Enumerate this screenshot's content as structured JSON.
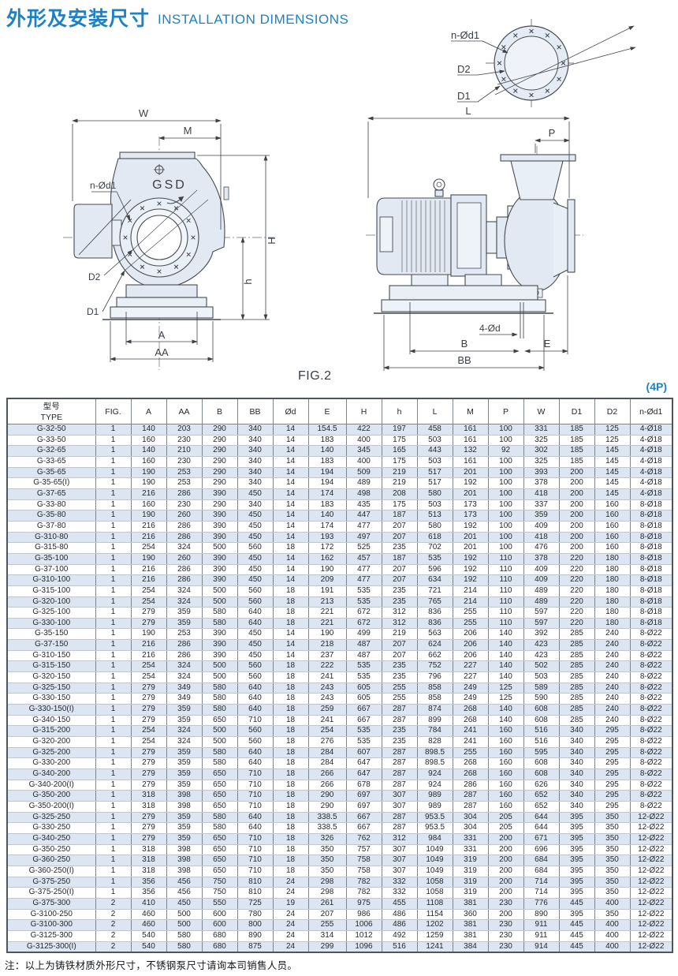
{
  "page": {
    "title_zh": "外形及安装尺寸",
    "title_en": "INSTALLATION DIMENSIONS",
    "fig_caption": "FIG.2",
    "pole_note": "(4P)",
    "footnote": "注：以上为铸铁材质外形尺寸，不锈钢泵尺寸请询本司销售人员。",
    "accent_color": "#1d81c4"
  },
  "drawings": {
    "brand": "GSD",
    "flange_detail": {
      "bolt_label": "n-Ød1",
      "d2_label": "D2",
      "d1_label": "D1"
    },
    "front_view": {
      "w": "W",
      "m": "M",
      "H": "H",
      "h": "h",
      "a": "A",
      "aa": "AA",
      "bolt_label": "n-Ød1",
      "d2": "D2",
      "d1": "D1"
    },
    "side_view": {
      "l": "L",
      "p": "P",
      "bolt_note": "4-Ød",
      "b": "B",
      "e": "E",
      "bb": "BB"
    }
  },
  "table": {
    "headers": [
      "型号\nTYPE",
      "FIG.",
      "A",
      "AA",
      "B",
      "BB",
      "Ød",
      "E",
      "H",
      "h",
      "L",
      "M",
      "P",
      "W",
      "D1",
      "D2",
      "n-Ød1"
    ],
    "rows": [
      [
        "G-32-50",
        "1",
        "140",
        "203",
        "290",
        "340",
        "14",
        "154.5",
        "422",
        "197",
        "458",
        "161",
        "100",
        "331",
        "185",
        "125",
        "4-Ø18"
      ],
      [
        "G-33-50",
        "1",
        "160",
        "230",
        "290",
        "340",
        "14",
        "183",
        "400",
        "175",
        "503",
        "161",
        "100",
        "325",
        "185",
        "125",
        "4-Ø18"
      ],
      [
        "G-32-65",
        "1",
        "140",
        "210",
        "290",
        "340",
        "14",
        "140",
        "345",
        "165",
        "443",
        "132",
        "92",
        "302",
        "185",
        "145",
        "4-Ø18"
      ],
      [
        "G-33-65",
        "1",
        "160",
        "230",
        "290",
        "340",
        "14",
        "183",
        "400",
        "175",
        "503",
        "161",
        "100",
        "325",
        "185",
        "145",
        "4-Ø18"
      ],
      [
        "G-35-65",
        "1",
        "190",
        "253",
        "290",
        "340",
        "14",
        "194",
        "509",
        "219",
        "517",
        "201",
        "100",
        "393",
        "200",
        "145",
        "4-Ø18"
      ],
      [
        "G-35-65(I)",
        "1",
        "190",
        "253",
        "290",
        "340",
        "14",
        "194",
        "489",
        "219",
        "517",
        "192",
        "100",
        "378",
        "200",
        "145",
        "4-Ø18"
      ],
      [
        "G-37-65",
        "1",
        "216",
        "286",
        "390",
        "450",
        "14",
        "174",
        "498",
        "208",
        "580",
        "201",
        "100",
        "418",
        "200",
        "145",
        "4-Ø18"
      ],
      [
        "G-33-80",
        "1",
        "160",
        "230",
        "290",
        "340",
        "14",
        "183",
        "435",
        "175",
        "503",
        "173",
        "100",
        "337",
        "200",
        "160",
        "8-Ø18"
      ],
      [
        "G-35-80",
        "1",
        "190",
        "260",
        "390",
        "450",
        "14",
        "140",
        "447",
        "187",
        "513",
        "173",
        "100",
        "359",
        "200",
        "160",
        "8-Ø18"
      ],
      [
        "G-37-80",
        "1",
        "216",
        "286",
        "390",
        "450",
        "14",
        "174",
        "477",
        "207",
        "580",
        "192",
        "100",
        "409",
        "200",
        "160",
        "8-Ø18"
      ],
      [
        "G-310-80",
        "1",
        "216",
        "286",
        "390",
        "450",
        "14",
        "193",
        "497",
        "207",
        "618",
        "201",
        "100",
        "418",
        "200",
        "160",
        "8-Ø18"
      ],
      [
        "G-315-80",
        "1",
        "254",
        "324",
        "500",
        "560",
        "18",
        "172",
        "525",
        "235",
        "702",
        "201",
        "100",
        "476",
        "200",
        "160",
        "8-Ø18"
      ],
      [
        "G-35-100",
        "1",
        "190",
        "260",
        "390",
        "450",
        "14",
        "162",
        "457",
        "187",
        "535",
        "192",
        "110",
        "378",
        "220",
        "180",
        "8-Ø18"
      ],
      [
        "G-37-100",
        "1",
        "216",
        "286",
        "390",
        "450",
        "14",
        "190",
        "477",
        "207",
        "596",
        "192",
        "110",
        "409",
        "220",
        "180",
        "8-Ø18"
      ],
      [
        "G-310-100",
        "1",
        "216",
        "286",
        "390",
        "450",
        "14",
        "209",
        "477",
        "207",
        "634",
        "192",
        "110",
        "409",
        "220",
        "180",
        "8-Ø18"
      ],
      [
        "G-315-100",
        "1",
        "254",
        "324",
        "500",
        "560",
        "18",
        "191",
        "535",
        "235",
        "721",
        "214",
        "110",
        "489",
        "220",
        "180",
        "8-Ø18"
      ],
      [
        "G-320-100",
        "1",
        "254",
        "324",
        "500",
        "560",
        "18",
        "213",
        "535",
        "235",
        "765",
        "214",
        "110",
        "489",
        "220",
        "180",
        "8-Ø18"
      ],
      [
        "G-325-100",
        "1",
        "279",
        "359",
        "580",
        "640",
        "18",
        "221",
        "672",
        "312",
        "836",
        "255",
        "110",
        "597",
        "220",
        "180",
        "8-Ø18"
      ],
      [
        "G-330-100",
        "1",
        "279",
        "359",
        "580",
        "640",
        "18",
        "221",
        "672",
        "312",
        "836",
        "255",
        "110",
        "597",
        "220",
        "180",
        "8-Ø18"
      ],
      [
        "G-35-150",
        "1",
        "190",
        "253",
        "390",
        "450",
        "14",
        "190",
        "499",
        "219",
        "563",
        "206",
        "140",
        "392",
        "285",
        "240",
        "8-Ø22"
      ],
      [
        "G-37-150",
        "1",
        "216",
        "286",
        "390",
        "450",
        "14",
        "218",
        "487",
        "207",
        "624",
        "206",
        "140",
        "423",
        "285",
        "240",
        "8-Ø22"
      ],
      [
        "G-310-150",
        "1",
        "216",
        "286",
        "390",
        "450",
        "14",
        "237",
        "487",
        "207",
        "662",
        "206",
        "140",
        "423",
        "285",
        "240",
        "8-Ø22"
      ],
      [
        "G-315-150",
        "1",
        "254",
        "324",
        "500",
        "560",
        "18",
        "222",
        "535",
        "235",
        "752",
        "227",
        "140",
        "502",
        "285",
        "240",
        "8-Ø22"
      ],
      [
        "G-320-150",
        "1",
        "254",
        "324",
        "500",
        "560",
        "18",
        "241",
        "535",
        "235",
        "796",
        "227",
        "140",
        "503",
        "285",
        "240",
        "8-Ø22"
      ],
      [
        "G-325-150",
        "1",
        "279",
        "349",
        "580",
        "640",
        "18",
        "243",
        "605",
        "255",
        "858",
        "249",
        "125",
        "589",
        "285",
        "240",
        "8-Ø22"
      ],
      [
        "G-330-150",
        "1",
        "279",
        "349",
        "580",
        "640",
        "18",
        "243",
        "605",
        "255",
        "858",
        "249",
        "125",
        "590",
        "285",
        "240",
        "8-Ø22"
      ],
      [
        "G-330-150(I)",
        "1",
        "279",
        "359",
        "580",
        "640",
        "18",
        "259",
        "667",
        "287",
        "874",
        "268",
        "140",
        "608",
        "285",
        "240",
        "8-Ø22"
      ],
      [
        "G-340-150",
        "1",
        "279",
        "359",
        "650",
        "710",
        "18",
        "241",
        "667",
        "287",
        "899",
        "268",
        "140",
        "608",
        "285",
        "240",
        "8-Ø22"
      ],
      [
        "G-315-200",
        "1",
        "254",
        "324",
        "500",
        "560",
        "18",
        "254",
        "535",
        "235",
        "784",
        "241",
        "160",
        "516",
        "340",
        "295",
        "8-Ø22"
      ],
      [
        "G-320-200",
        "1",
        "254",
        "324",
        "500",
        "560",
        "18",
        "276",
        "535",
        "235",
        "828",
        "241",
        "160",
        "516",
        "340",
        "295",
        "8-Ø22"
      ],
      [
        "G-325-200",
        "1",
        "279",
        "359",
        "580",
        "640",
        "18",
        "284",
        "607",
        "287",
        "898.5",
        "255",
        "160",
        "595",
        "340",
        "295",
        "8-Ø22"
      ],
      [
        "G-330-200",
        "1",
        "279",
        "359",
        "580",
        "640",
        "18",
        "284",
        "647",
        "287",
        "898.5",
        "268",
        "160",
        "608",
        "340",
        "295",
        "8-Ø22"
      ],
      [
        "G-340-200",
        "1",
        "279",
        "359",
        "650",
        "710",
        "18",
        "266",
        "647",
        "287",
        "924",
        "268",
        "160",
        "608",
        "340",
        "295",
        "8-Ø22"
      ],
      [
        "G-340-200(I)",
        "1",
        "279",
        "359",
        "650",
        "710",
        "18",
        "266",
        "678",
        "287",
        "924",
        "286",
        "160",
        "626",
        "340",
        "295",
        "8-Ø22"
      ],
      [
        "G-350-200",
        "1",
        "318",
        "398",
        "650",
        "710",
        "18",
        "290",
        "697",
        "307",
        "989",
        "287",
        "160",
        "652",
        "340",
        "295",
        "8-Ø22"
      ],
      [
        "G-350-200(I)",
        "1",
        "318",
        "398",
        "650",
        "710",
        "18",
        "290",
        "697",
        "307",
        "989",
        "287",
        "160",
        "652",
        "340",
        "295",
        "8-Ø22"
      ],
      [
        "G-325-250",
        "1",
        "279",
        "359",
        "580",
        "640",
        "18",
        "338.5",
        "667",
        "287",
        "953.5",
        "304",
        "205",
        "644",
        "395",
        "350",
        "12-Ø22"
      ],
      [
        "G-330-250",
        "1",
        "279",
        "359",
        "580",
        "640",
        "18",
        "338.5",
        "667",
        "287",
        "953.5",
        "304",
        "205",
        "644",
        "395",
        "350",
        "12-Ø22"
      ],
      [
        "G-340-250",
        "1",
        "279",
        "359",
        "650",
        "710",
        "18",
        "326",
        "762",
        "312",
        "984",
        "331",
        "200",
        "671",
        "395",
        "350",
        "12-Ø22"
      ],
      [
        "G-350-250",
        "1",
        "318",
        "398",
        "650",
        "710",
        "18",
        "350",
        "757",
        "307",
        "1049",
        "331",
        "200",
        "696",
        "395",
        "350",
        "12-Ø22"
      ],
      [
        "G-360-250",
        "1",
        "318",
        "398",
        "650",
        "710",
        "18",
        "350",
        "758",
        "307",
        "1049",
        "319",
        "200",
        "684",
        "395",
        "350",
        "12-Ø22"
      ],
      [
        "G-360-250(I)",
        "1",
        "318",
        "398",
        "650",
        "710",
        "18",
        "350",
        "758",
        "307",
        "1049",
        "319",
        "200",
        "684",
        "395",
        "350",
        "12-Ø22"
      ],
      [
        "G-375-250",
        "1",
        "356",
        "456",
        "750",
        "810",
        "24",
        "298",
        "782",
        "332",
        "1058",
        "319",
        "200",
        "714",
        "395",
        "350",
        "12-Ø22"
      ],
      [
        "G-375-250(I)",
        "1",
        "356",
        "456",
        "750",
        "810",
        "24",
        "298",
        "782",
        "332",
        "1058",
        "319",
        "200",
        "714",
        "395",
        "350",
        "12-Ø22"
      ],
      [
        "G-375-300",
        "2",
        "410",
        "450",
        "550",
        "725",
        "19",
        "261",
        "975",
        "455",
        "1108",
        "381",
        "230",
        "776",
        "445",
        "400",
        "12-Ø22"
      ],
      [
        "G-3100-250",
        "2",
        "460",
        "500",
        "600",
        "780",
        "24",
        "207",
        "986",
        "486",
        "1154",
        "360",
        "200",
        "890",
        "395",
        "350",
        "12-Ø22"
      ],
      [
        "G-3100-300",
        "2",
        "460",
        "500",
        "600",
        "800",
        "24",
        "255",
        "1006",
        "486",
        "1202",
        "381",
        "230",
        "911",
        "445",
        "400",
        "12-Ø22"
      ],
      [
        "G-3125-300",
        "2",
        "540",
        "580",
        "680",
        "890",
        "24",
        "314",
        "1012",
        "492",
        "1259",
        "381",
        "230",
        "911",
        "445",
        "400",
        "12-Ø22"
      ],
      [
        "G-3125-300(I)",
        "2",
        "540",
        "580",
        "680",
        "875",
        "24",
        "299",
        "1096",
        "516",
        "1241",
        "384",
        "230",
        "914",
        "445",
        "400",
        "12-Ø22"
      ]
    ]
  }
}
